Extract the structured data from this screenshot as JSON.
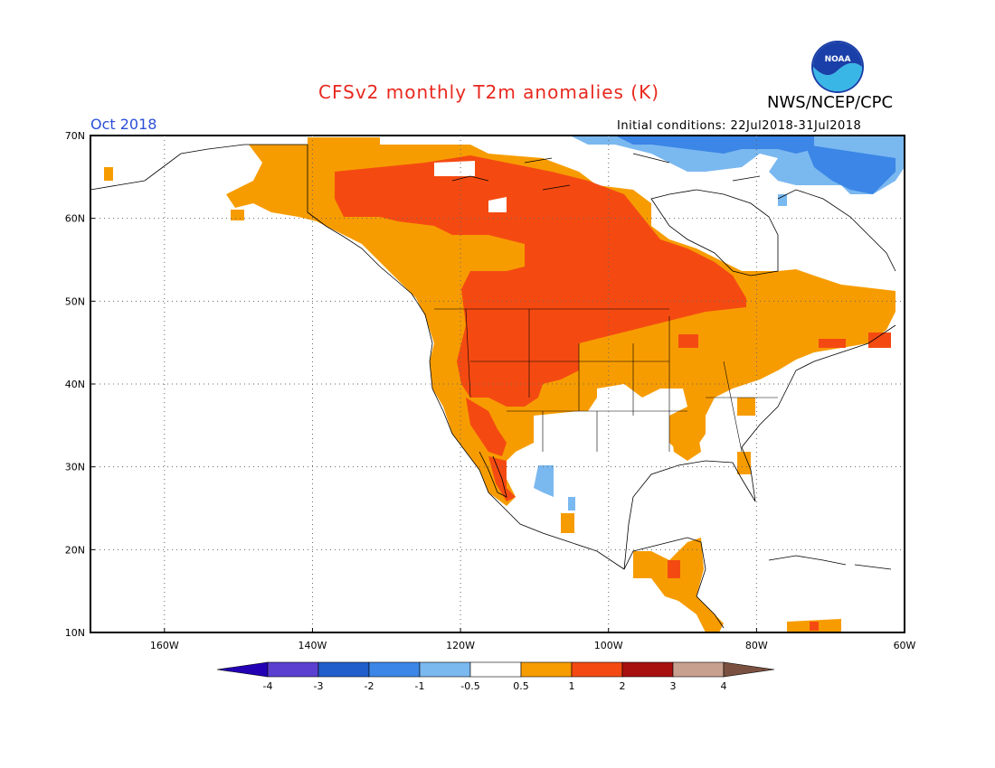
{
  "header": {
    "title": "CFSv2 monthly T2m anomalies (K)",
    "agency": "NWS/NCEP/CPC",
    "valid_month": "Oct 2018",
    "initial_conditions": "Initial conditions: 22Jul2018-31Jul2018",
    "logo_text": "NOAA"
  },
  "map": {
    "lat_range": [
      10,
      70
    ],
    "lon_range": [
      -170,
      -60
    ],
    "lat_ticks": [
      "70N",
      "60N",
      "50N",
      "40N",
      "30N",
      "20N",
      "10N"
    ],
    "lon_ticks": [
      "160W",
      "140W",
      "120W",
      "100W",
      "80W",
      "60W"
    ],
    "gridlines": true
  },
  "colorbar": {
    "labels": [
      "-4",
      "-3",
      "-2",
      "-1",
      "-0.5",
      "0.5",
      "1",
      "2",
      "3",
      "4"
    ],
    "colors": [
      "#2400b5",
      "#5a3fd0",
      "#1f5ecb",
      "#3b86e6",
      "#7ab8f0",
      "#ffffff",
      "#f79c00",
      "#f44a12",
      "#a81010",
      "#c8a090",
      "#7a5040"
    ]
  },
  "anomaly_colors": {
    "warm_0.5_1": "#f79c00",
    "warm_1_2": "#f44a12",
    "warm_2_3": "#a81010",
    "cool_-0.5_-1": "#7ab8f0",
    "cool_-1_-2": "#3b86e6"
  }
}
